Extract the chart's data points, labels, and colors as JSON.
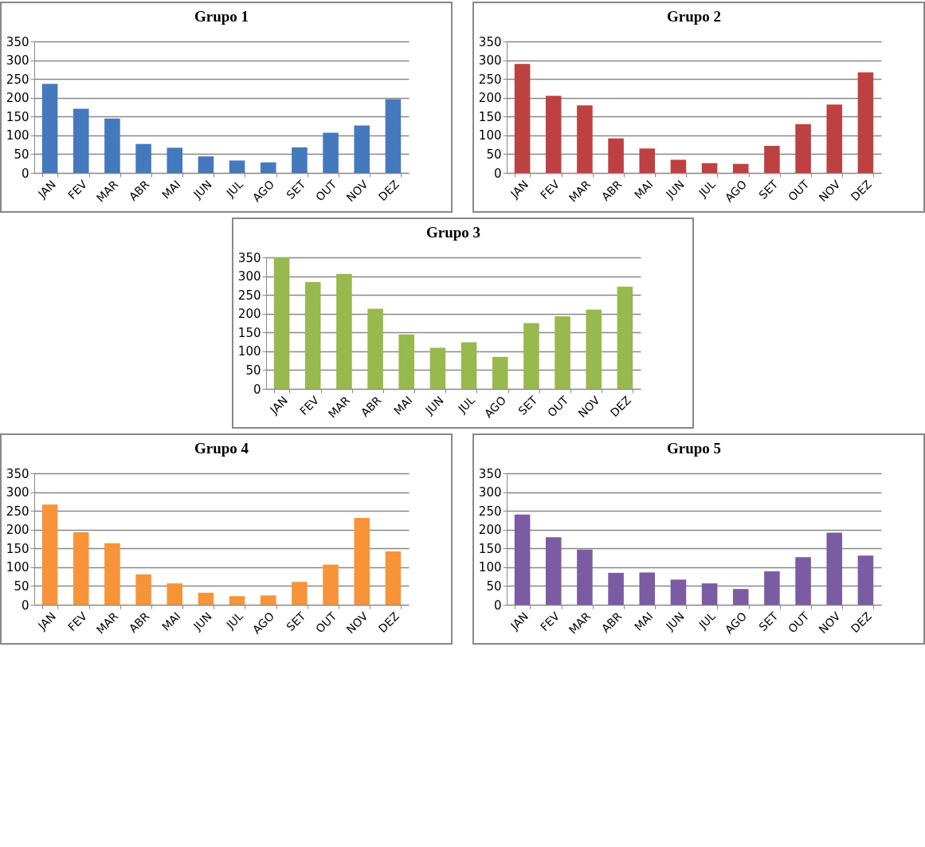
{
  "chart_data": [
    {
      "type": "bar",
      "title": "Grupo 1",
      "categories": [
        "JAN",
        "FEV",
        "MAR",
        "ABR",
        "MAI",
        "JUN",
        "JUL",
        "AGO",
        "SET",
        "OUT",
        "NOV",
        "DEZ"
      ],
      "values": [
        237,
        171,
        145,
        77,
        67,
        44,
        33,
        28,
        68,
        107,
        126,
        196
      ],
      "color": "#4579bd",
      "ylim": [
        0,
        350
      ],
      "yticks": [
        0,
        50,
        100,
        150,
        200,
        250,
        300,
        350
      ],
      "grid": "y"
    },
    {
      "type": "bar",
      "title": "Grupo 2",
      "categories": [
        "JAN",
        "FEV",
        "MAR",
        "ABR",
        "MAI",
        "JUN",
        "JUL",
        "AGO",
        "SET",
        "OUT",
        "NOV",
        "DEZ"
      ],
      "values": [
        290,
        205,
        180,
        92,
        65,
        35,
        26,
        24,
        72,
        130,
        182,
        268
      ],
      "color": "#be4142",
      "ylim": [
        0,
        350
      ],
      "yticks": [
        0,
        50,
        100,
        150,
        200,
        250,
        300,
        350
      ],
      "grid": "y"
    },
    {
      "type": "bar",
      "title": "Grupo 3",
      "categories": [
        "JAN",
        "FEV",
        "MAR",
        "ABR",
        "MAI",
        "JUN",
        "JUL",
        "AGO",
        "SET",
        "OUT",
        "NOV",
        "DEZ"
      ],
      "values": [
        350,
        284,
        306,
        213,
        145,
        109,
        124,
        85,
        175,
        193,
        211,
        272
      ],
      "color": "#97b94d",
      "ylim": [
        0,
        350
      ],
      "yticks": [
        0,
        50,
        100,
        150,
        200,
        250,
        300,
        350
      ],
      "grid": "y"
    },
    {
      "type": "bar",
      "title": "Grupo 4",
      "categories": [
        "JAN",
        "FEV",
        "MAR",
        "ABR",
        "MAI",
        "JUN",
        "JUL",
        "AGO",
        "SET",
        "OUT",
        "NOV",
        "DEZ"
      ],
      "values": [
        267,
        193,
        164,
        81,
        57,
        32,
        23,
        25,
        61,
        107,
        231,
        142
      ],
      "color": "#f79439",
      "ylim": [
        0,
        350
      ],
      "yticks": [
        0,
        50,
        100,
        150,
        200,
        250,
        300,
        350
      ],
      "grid": "y"
    },
    {
      "type": "bar",
      "title": "Grupo 5",
      "categories": [
        "JAN",
        "FEV",
        "MAR",
        "ABR",
        "MAI",
        "JUN",
        "JUL",
        "AGO",
        "SET",
        "OUT",
        "NOV",
        "DEZ"
      ],
      "values": [
        240,
        180,
        147,
        85,
        86,
        67,
        57,
        42,
        89,
        127,
        192,
        131
      ],
      "color": "#7b5ca3",
      "ylim": [
        0,
        350
      ],
      "yticks": [
        0,
        50,
        100,
        150,
        200,
        250,
        300,
        350
      ],
      "grid": "y"
    }
  ]
}
